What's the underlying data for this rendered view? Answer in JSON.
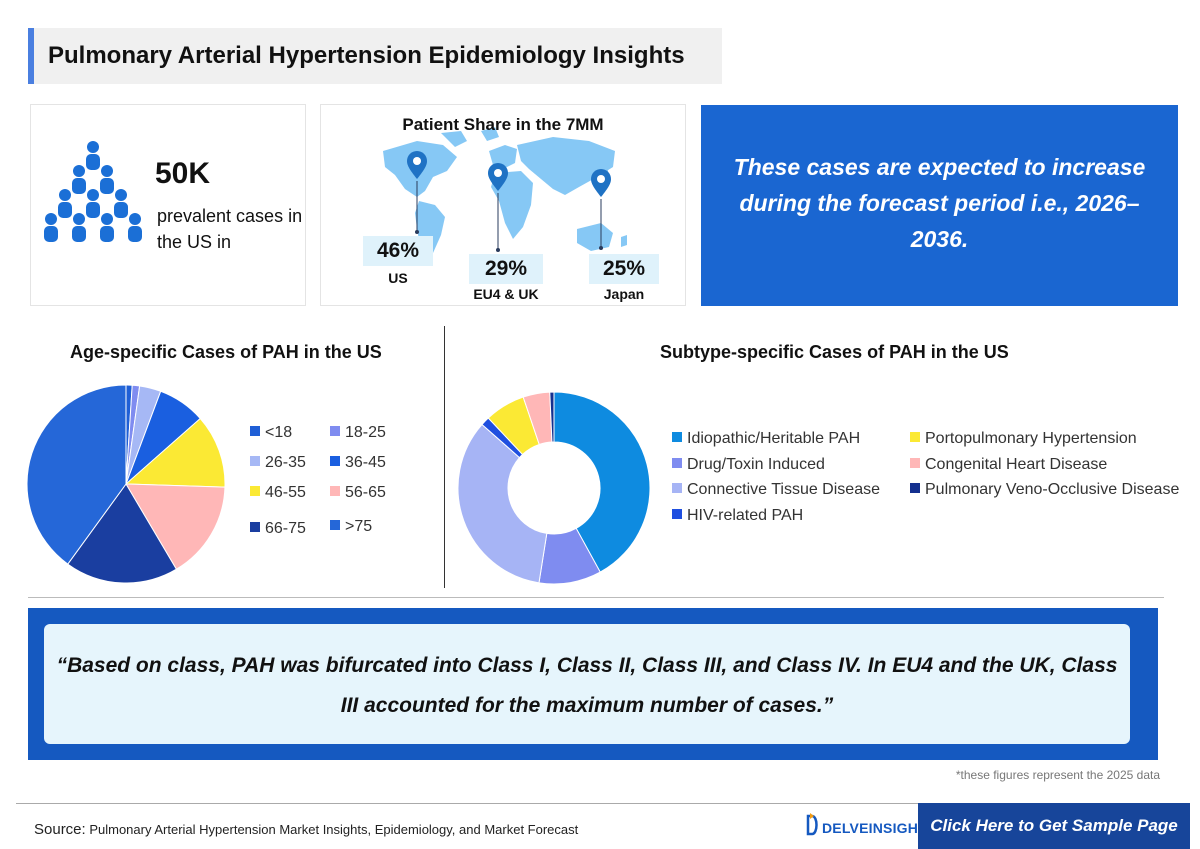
{
  "header": {
    "title": "Pulmonary Arterial Hypertension Epidemiology Insights"
  },
  "prevalence": {
    "value": "50K",
    "description": "prevalent cases in the US in",
    "icon": "people-pyramid-icon"
  },
  "patient_share": {
    "title": "Patient Share in the 7MM",
    "regions": [
      {
        "percent": "46%",
        "label": "US"
      },
      {
        "percent": "29%",
        "label": "EU4 & UK"
      },
      {
        "percent": "25%",
        "label": "Japan"
      }
    ]
  },
  "forecast": {
    "text": "These cases are expected to increase during the forecast period i.e., 2026–2036."
  },
  "quote": {
    "text": "“Based on class, PAH was bifurcated into Class I, Class II, Class III, and Class IV. In EU4 and the UK, Class III accounted for the maximum number of cases.”"
  },
  "footnote": "*these figures represent the 2025 data",
  "footer": {
    "source_label": "Source:",
    "source_text": "Pulmonary Arterial Hypertension Market Insights, Epidemiology, and Market Forecast",
    "logo_text": "DELVEINSIGHT",
    "cta_label": "Click Here to Get Sample Page"
  },
  "colors": {
    "accent": "#4a7fe0",
    "forecast_bg": "#1a66d1",
    "quote_bg": "#1559c0",
    "quote_inner": "#e6f5fc",
    "cta_bg": "#17459a"
  },
  "chart_data": [
    {
      "type": "pie",
      "title": "Age-specific Cases of PAH in the US",
      "legend": "right",
      "categories": [
        "<18",
        "18-25",
        "26-35",
        "36-45",
        "46-55",
        "56-65",
        "66-75",
        ">75"
      ],
      "values": [
        1.0,
        1.2,
        3.5,
        7.8,
        12.0,
        16.0,
        18.5,
        40.0
      ],
      "colors": [
        "#1f5fd6",
        "#7f8cf0",
        "#a6b8f5",
        "#1a5fe0",
        "#fbe934",
        "#ffb7b7",
        "#1a3ea0",
        "#2567d8"
      ]
    },
    {
      "type": "pie",
      "title": "Subtype-specific Cases of PAH in the US",
      "donut": true,
      "legend": "right",
      "categories": [
        "Idiopathic/Heritable PAH",
        "Drug/Toxin Induced",
        "Connective Tissue Disease",
        "HIV-related PAH",
        "Portopulmonary Hypertension",
        "Congenital Heart Disease",
        "Pulmonary Veno-Occlusive Disease"
      ],
      "values": [
        42,
        10.5,
        34,
        1.5,
        6.8,
        4.5,
        0.7
      ],
      "colors": [
        "#0e8be0",
        "#7f8cf0",
        "#a6b4f5",
        "#1f4fe0",
        "#fbe934",
        "#ffb7b7",
        "#14308f"
      ]
    }
  ]
}
